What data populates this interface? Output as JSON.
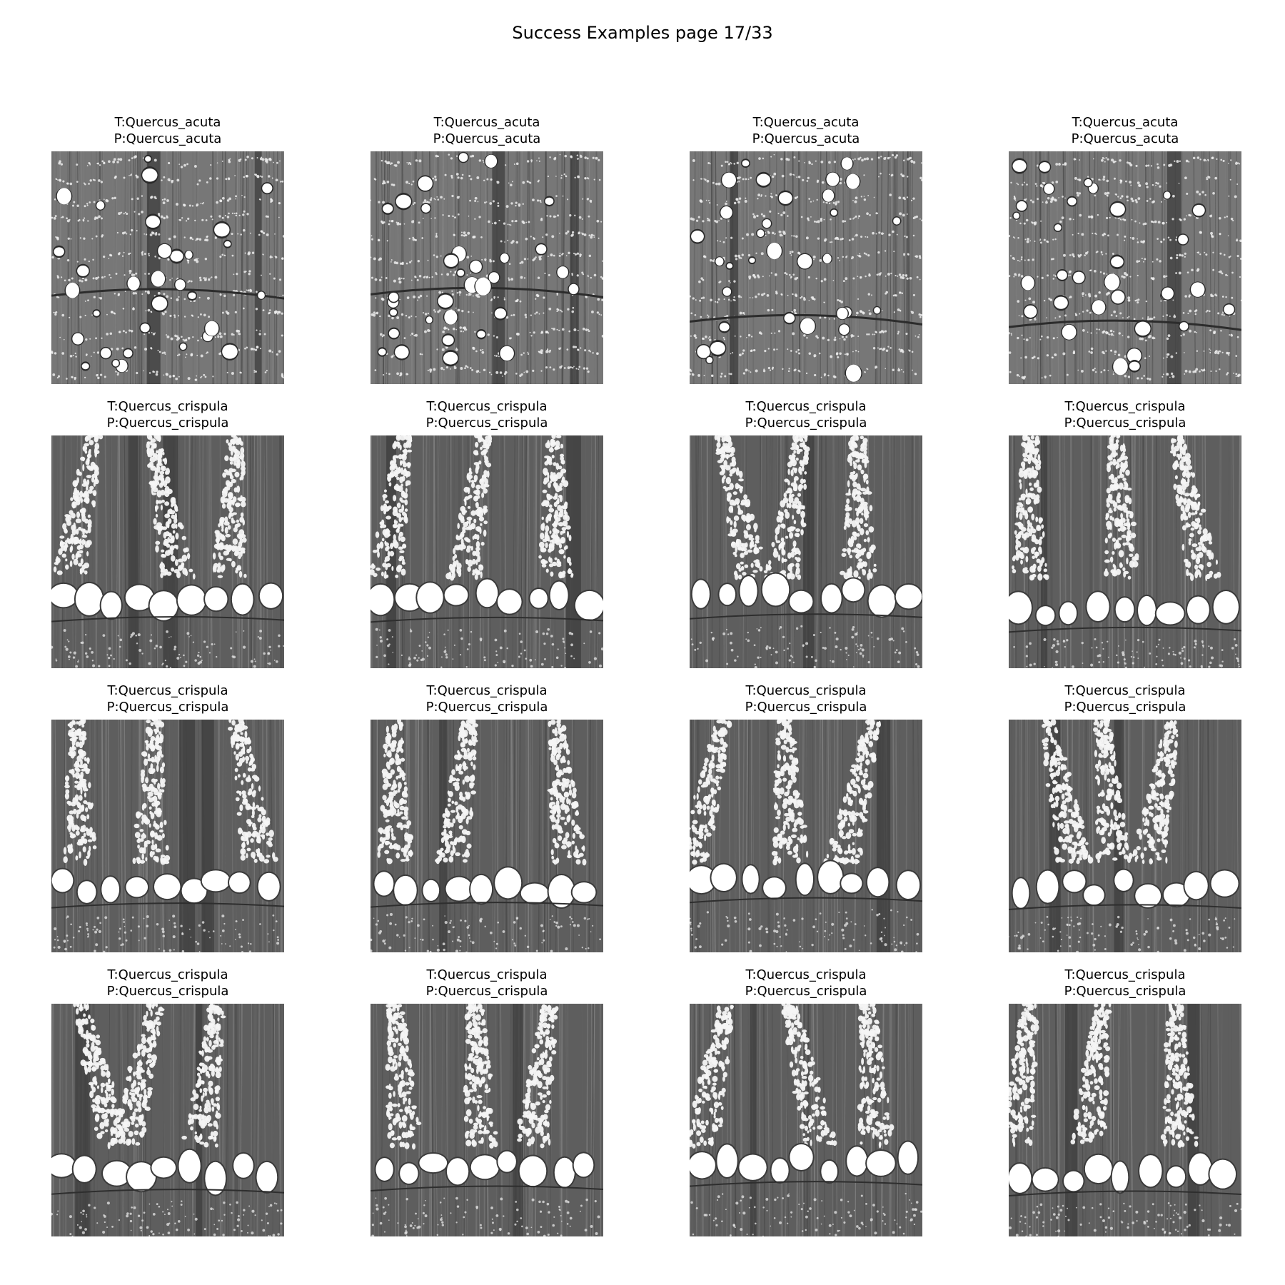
{
  "figure": {
    "title": "Success Examples page 17/33"
  },
  "rows": [
    {
      "panels": [
        {
          "true_label": "T:Quercus_acuta",
          "pred_label": "P:Quercus_acuta",
          "pattern": "acuta"
        },
        {
          "true_label": "T:Quercus_acuta",
          "pred_label": "P:Quercus_acuta",
          "pattern": "acuta"
        },
        {
          "true_label": "T:Quercus_acuta",
          "pred_label": "P:Quercus_acuta",
          "pattern": "acuta"
        },
        {
          "true_label": "T:Quercus_acuta",
          "pred_label": "P:Quercus_acuta",
          "pattern": "acuta"
        }
      ]
    },
    {
      "panels": [
        {
          "true_label": "T:Quercus_crispula",
          "pred_label": "P:Quercus_crispula",
          "pattern": "crispula"
        },
        {
          "true_label": "T:Quercus_crispula",
          "pred_label": "P:Quercus_crispula",
          "pattern": "crispula"
        },
        {
          "true_label": "T:Quercus_crispula",
          "pred_label": "P:Quercus_crispula",
          "pattern": "crispula"
        },
        {
          "true_label": "T:Quercus_crispula",
          "pred_label": "P:Quercus_crispula",
          "pattern": "crispula"
        }
      ]
    },
    {
      "panels": [
        {
          "true_label": "T:Quercus_crispula",
          "pred_label": "P:Quercus_crispula",
          "pattern": "crispula"
        },
        {
          "true_label": "T:Quercus_crispula",
          "pred_label": "P:Quercus_crispula",
          "pattern": "crispula"
        },
        {
          "true_label": "T:Quercus_crispula",
          "pred_label": "P:Quercus_crispula",
          "pattern": "crispula"
        },
        {
          "true_label": "T:Quercus_crispula",
          "pred_label": "P:Quercus_crispula",
          "pattern": "crispula"
        }
      ]
    },
    {
      "panels": [
        {
          "true_label": "T:Quercus_crispula",
          "pred_label": "P:Quercus_crispula",
          "pattern": "crispula"
        },
        {
          "true_label": "T:Quercus_crispula",
          "pred_label": "P:Quercus_crispula",
          "pattern": "crispula"
        },
        {
          "true_label": "T:Quercus_crispula",
          "pred_label": "P:Quercus_crispula",
          "pattern": "crispula"
        },
        {
          "true_label": "T:Quercus_crispula",
          "pred_label": "P:Quercus_crispula",
          "pattern": "crispula"
        }
      ]
    }
  ]
}
